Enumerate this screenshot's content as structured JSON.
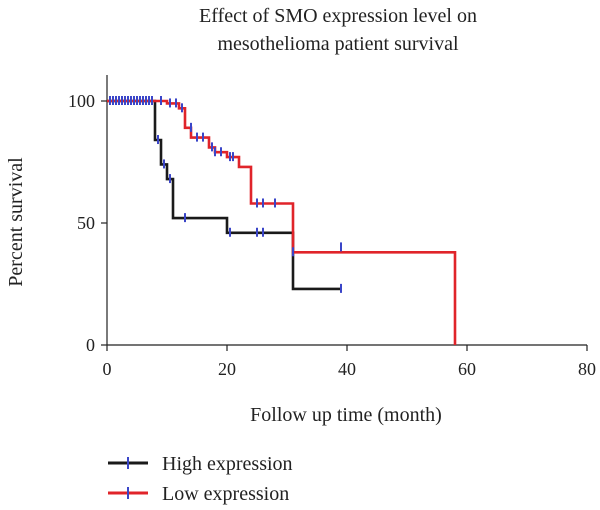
{
  "chart_data": {
    "type": "line",
    "title_lines": [
      "Effect of SMO expression level on",
      "mesothelioma patient survival"
    ],
    "xlabel": "Follow up time (month)",
    "ylabel": "Percent survival",
    "xlim": [
      0,
      80
    ],
    "ylim": [
      0,
      100
    ],
    "x_ticks": [
      0,
      20,
      40,
      60,
      80
    ],
    "y_ticks": [
      0,
      50,
      100
    ],
    "grid": false,
    "legend_position": "bottom-left",
    "censor_color": "#3a45c8",
    "series": [
      {
        "name": "High expression",
        "color": "#1a1a1a",
        "step_x": [
          0,
          8,
          8,
          9,
          9,
          10,
          10,
          11,
          11,
          20,
          20,
          31,
          31,
          39
        ],
        "step_y": [
          100,
          100,
          84,
          84,
          74,
          74,
          68,
          68,
          52,
          52,
          46,
          46,
          23,
          23
        ],
        "censored": [
          [
            1,
            100
          ],
          [
            2,
            100
          ],
          [
            3,
            100
          ],
          [
            4,
            100
          ],
          [
            5,
            100
          ],
          [
            6,
            100
          ],
          [
            7,
            100
          ],
          [
            8.5,
            84
          ],
          [
            9.5,
            74
          ],
          [
            10.5,
            68
          ],
          [
            13,
            52
          ],
          [
            20.5,
            46
          ],
          [
            25,
            46
          ],
          [
            26,
            46
          ],
          [
            39,
            23
          ]
        ]
      },
      {
        "name": "Low expression",
        "color": "#e0242a",
        "step_x": [
          0,
          10,
          10,
          12,
          12,
          13,
          13,
          14,
          14,
          17,
          17,
          18,
          18,
          20,
          20,
          22,
          22,
          24,
          24,
          31,
          31,
          58,
          58
        ],
        "step_y": [
          100,
          100,
          99,
          99,
          97,
          97,
          89,
          89,
          85,
          85,
          81,
          81,
          79,
          79,
          77,
          77,
          73,
          73,
          58,
          58,
          38,
          38,
          0
        ],
        "censored": [
          [
            0.5,
            100
          ],
          [
            1.5,
            100
          ],
          [
            2.5,
            100
          ],
          [
            3.5,
            100
          ],
          [
            4.5,
            100
          ],
          [
            5.5,
            100
          ],
          [
            6.5,
            100
          ],
          [
            7.5,
            100
          ],
          [
            9,
            100
          ],
          [
            10.5,
            99
          ],
          [
            11.5,
            99
          ],
          [
            12.5,
            97
          ],
          [
            14,
            89
          ],
          [
            15,
            85
          ],
          [
            16,
            85
          ],
          [
            17.5,
            81
          ],
          [
            18,
            79
          ],
          [
            19,
            79
          ],
          [
            20.5,
            77
          ],
          [
            21,
            77
          ],
          [
            25,
            58
          ],
          [
            26,
            58
          ],
          [
            28,
            58
          ],
          [
            31,
            38
          ],
          [
            39,
            40
          ]
        ]
      }
    ]
  }
}
